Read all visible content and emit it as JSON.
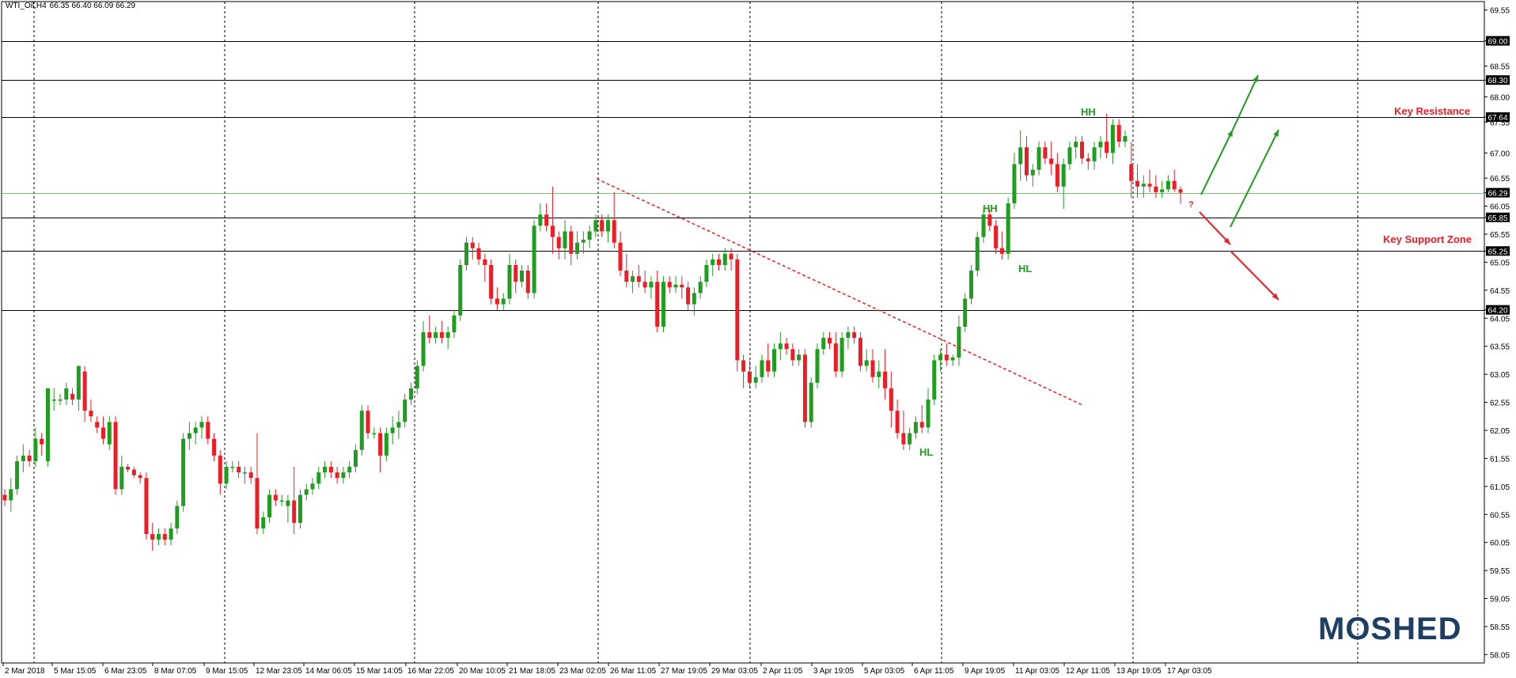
{
  "header": {
    "symbol": "WTI_Oil,H4",
    "ohlc": "66.35 66.40 66.09 66.29"
  },
  "logo": "MOSHED",
  "colors": {
    "up": "#1f9d1f",
    "down": "#ee1c24",
    "grid": "#000000",
    "resistance_text": "#ee1c24",
    "logo": "#1e3e63"
  },
  "chart_data": {
    "type": "candlestick",
    "title": "WTI_Oil,H4",
    "ylim": [
      57.9,
      69.7
    ],
    "y_ticks": [
      "69.55",
      "69.00",
      "68.55",
      "68.30",
      "68.00",
      "67.64",
      "67.55",
      "67.00",
      "66.55",
      "66.29",
      "66.05",
      "65.85",
      "65.55",
      "65.25",
      "65.05",
      "64.55",
      "64.20",
      "64.05",
      "63.55",
      "63.05",
      "62.55",
      "62.05",
      "61.55",
      "61.05",
      "60.55",
      "60.05",
      "59.55",
      "59.05",
      "58.55",
      "58.05"
    ],
    "x_ticks": [
      "2 Mar 2018",
      "5 Mar 15:05",
      "6 Mar 23:05",
      "8 Mar 07:05",
      "9 Mar 15:05",
      "12 Mar 23:05",
      "14 Mar 06:05",
      "15 Mar 14:05",
      "16 Mar 22:05",
      "20 Mar 10:05",
      "21 Mar 18:05",
      "23 Mar 02:05",
      "26 Mar 11:05",
      "27 Mar 19:05",
      "29 Mar 03:05",
      "2 Apr 11:05",
      "3 Apr 19:05",
      "5 Apr 03:05",
      "6 Apr 11:05",
      "9 Apr 19:05",
      "11 Apr 03:05",
      "12 Apr 11:05",
      "13 Apr 19:05",
      "17 Apr 03:05"
    ],
    "horizontal_levels": [
      69.0,
      68.3,
      67.64,
      65.85,
      65.25,
      64.2
    ],
    "current_price": 66.29,
    "annotations": {
      "key_resistance": "Key Resistance",
      "key_support": "Key Support Zone",
      "hh1": "HH",
      "hh2": "HH",
      "hl1": "HL",
      "hl2": "HL",
      "question": "?"
    },
    "candles": [
      [
        60.9,
        61.0,
        60.7,
        60.8
      ],
      [
        60.8,
        61.2,
        60.6,
        61.0
      ],
      [
        61.0,
        61.6,
        60.9,
        61.5
      ],
      [
        61.5,
        61.8,
        61.3,
        61.6
      ],
      [
        61.6,
        61.7,
        61.4,
        61.5
      ],
      [
        61.5,
        62.1,
        61.4,
        61.9
      ],
      [
        61.9,
        62.0,
        61.6,
        61.8
      ],
      [
        61.5,
        62.7,
        61.4,
        62.8
      ],
      [
        62.6,
        62.8,
        62.4,
        62.6
      ],
      [
        62.6,
        62.7,
        62.5,
        62.6
      ],
      [
        62.6,
        62.9,
        62.5,
        62.8
      ],
      [
        62.7,
        62.8,
        62.5,
        62.6
      ],
      [
        62.6,
        63.2,
        62.4,
        63.2
      ],
      [
        63.1,
        63.2,
        62.2,
        62.4
      ],
      [
        62.4,
        62.6,
        62.2,
        62.3
      ],
      [
        62.2,
        62.3,
        62.0,
        62.1
      ],
      [
        62.1,
        62.3,
        61.8,
        61.9
      ],
      [
        61.8,
        62.3,
        61.7,
        62.2
      ],
      [
        62.2,
        62.3,
        60.9,
        61.0
      ],
      [
        61.0,
        61.6,
        60.9,
        61.4
      ],
      [
        61.4,
        61.45,
        61.3,
        61.35
      ],
      [
        61.35,
        61.4,
        61.2,
        61.25
      ],
      [
        61.25,
        61.3,
        61.1,
        61.2
      ],
      [
        61.2,
        61.3,
        60.1,
        60.2
      ],
      [
        60.2,
        60.4,
        59.9,
        60.1
      ],
      [
        60.1,
        60.3,
        60.0,
        60.2
      ],
      [
        60.2,
        60.3,
        60.0,
        60.1
      ],
      [
        60.1,
        60.4,
        60.0,
        60.3
      ],
      [
        60.3,
        60.8,
        60.2,
        60.7
      ],
      [
        60.7,
        62.0,
        60.6,
        61.9
      ],
      [
        61.9,
        62.2,
        61.7,
        62.0
      ],
      [
        62.0,
        62.2,
        61.8,
        62.1
      ],
      [
        62.1,
        62.3,
        61.9,
        62.2
      ],
      [
        62.2,
        62.3,
        61.8,
        61.9
      ],
      [
        61.9,
        62.0,
        61.5,
        61.6
      ],
      [
        61.6,
        61.7,
        60.9,
        61.1
      ],
      [
        61.1,
        61.5,
        61.0,
        61.4
      ],
      [
        61.4,
        61.5,
        61.3,
        61.4
      ],
      [
        61.4,
        61.5,
        61.2,
        61.3
      ],
      [
        61.3,
        61.4,
        61.1,
        61.3
      ],
      [
        61.3,
        61.4,
        61.1,
        61.2
      ],
      [
        61.2,
        62.0,
        60.2,
        60.3
      ],
      [
        60.3,
        60.6,
        60.2,
        60.5
      ],
      [
        60.5,
        61.0,
        60.4,
        60.9
      ],
      [
        60.9,
        61.0,
        60.7,
        60.8
      ],
      [
        60.8,
        60.9,
        60.7,
        60.8
      ],
      [
        60.7,
        60.9,
        60.4,
        60.8
      ],
      [
        60.8,
        61.4,
        60.2,
        60.4
      ],
      [
        60.4,
        61.0,
        60.3,
        60.9
      ],
      [
        60.9,
        61.1,
        60.8,
        61.0
      ],
      [
        61.0,
        61.2,
        60.9,
        61.1
      ],
      [
        61.1,
        61.4,
        61.0,
        61.3
      ],
      [
        61.3,
        61.5,
        61.2,
        61.4
      ],
      [
        61.4,
        61.5,
        61.2,
        61.3
      ],
      [
        61.3,
        61.4,
        61.1,
        61.2
      ],
      [
        61.2,
        61.4,
        61.1,
        61.3
      ],
      [
        61.3,
        61.5,
        61.2,
        61.4
      ],
      [
        61.4,
        61.8,
        61.3,
        61.7
      ],
      [
        61.7,
        62.5,
        61.6,
        62.4
      ],
      [
        62.4,
        62.5,
        61.9,
        62.0
      ],
      [
        62.0,
        62.1,
        61.9,
        62.0
      ],
      [
        62.0,
        62.1,
        61.3,
        61.6
      ],
      [
        61.6,
        62.1,
        61.5,
        62.0
      ],
      [
        62.0,
        62.3,
        61.8,
        62.1
      ],
      [
        62.1,
        62.4,
        61.9,
        62.2
      ],
      [
        62.2,
        62.7,
        62.1,
        62.6
      ],
      [
        62.6,
        62.9,
        62.5,
        62.8
      ],
      [
        62.8,
        63.3,
        62.7,
        63.2
      ],
      [
        63.2,
        64.0,
        63.1,
        63.8
      ],
      [
        63.8,
        64.1,
        63.6,
        63.7
      ],
      [
        63.7,
        63.9,
        63.6,
        63.8
      ],
      [
        63.8,
        64.0,
        63.6,
        63.7
      ],
      [
        63.7,
        63.9,
        63.5,
        63.8
      ],
      [
        63.8,
        64.2,
        63.7,
        64.1
      ],
      [
        64.1,
        65.1,
        64.0,
        65.0
      ],
      [
        65.0,
        65.5,
        64.9,
        65.4
      ],
      [
        65.4,
        65.5,
        65.1,
        65.3
      ],
      [
        65.3,
        65.4,
        65.0,
        65.1
      ],
      [
        65.1,
        65.2,
        64.7,
        65.0
      ],
      [
        65.0,
        65.1,
        64.3,
        64.4
      ],
      [
        64.4,
        64.6,
        64.2,
        64.3
      ],
      [
        64.3,
        64.5,
        64.2,
        64.4
      ],
      [
        64.4,
        65.2,
        64.3,
        65.0
      ],
      [
        65.0,
        65.1,
        64.5,
        64.7
      ],
      [
        64.7,
        65.0,
        64.6,
        64.9
      ],
      [
        64.9,
        65.0,
        64.4,
        64.5
      ],
      [
        64.5,
        65.8,
        64.4,
        65.7
      ],
      [
        65.7,
        66.1,
        65.6,
        65.9
      ],
      [
        65.9,
        66.1,
        65.6,
        65.7
      ],
      [
        65.7,
        66.4,
        65.2,
        65.5
      ],
      [
        65.5,
        65.6,
        65.1,
        65.3
      ],
      [
        65.3,
        65.8,
        65.1,
        65.6
      ],
      [
        65.6,
        65.7,
        65.0,
        65.2
      ],
      [
        65.2,
        65.6,
        65.1,
        65.4
      ],
      [
        65.4,
        65.6,
        65.2,
        65.45
      ],
      [
        65.45,
        65.7,
        65.3,
        65.6
      ],
      [
        65.6,
        65.9,
        65.5,
        65.8
      ],
      [
        65.8,
        65.9,
        65.5,
        65.6
      ],
      [
        65.6,
        65.9,
        65.4,
        65.8
      ],
      [
        65.8,
        66.3,
        65.3,
        65.4
      ],
      [
        65.4,
        65.6,
        64.8,
        64.9
      ],
      [
        64.9,
        65.2,
        64.6,
        64.7
      ],
      [
        64.7,
        64.9,
        64.5,
        64.8
      ],
      [
        64.8,
        65.0,
        64.6,
        64.7
      ],
      [
        64.7,
        64.9,
        64.5,
        64.6
      ],
      [
        64.6,
        64.8,
        64.4,
        64.7
      ],
      [
        64.7,
        64.9,
        63.8,
        63.9
      ],
      [
        63.9,
        64.8,
        63.8,
        64.7
      ],
      [
        64.7,
        64.8,
        64.5,
        64.6
      ],
      [
        64.6,
        64.8,
        64.5,
        64.65
      ],
      [
        64.65,
        64.8,
        64.4,
        64.6
      ],
      [
        64.6,
        64.7,
        64.2,
        64.3
      ],
      [
        64.3,
        64.6,
        64.1,
        64.5
      ],
      [
        64.5,
        64.8,
        64.4,
        64.7
      ],
      [
        64.7,
        65.1,
        64.6,
        65.0
      ],
      [
        65.0,
        65.2,
        64.8,
        65.1
      ],
      [
        65.1,
        65.2,
        64.9,
        65.0
      ],
      [
        65.0,
        65.3,
        64.9,
        65.2
      ],
      [
        65.2,
        65.3,
        64.9,
        65.1
      ],
      [
        65.1,
        65.2,
        63.1,
        63.3
      ],
      [
        63.3,
        63.4,
        62.8,
        63.1
      ],
      [
        63.1,
        63.3,
        62.8,
        62.9
      ],
      [
        62.9,
        63.2,
        62.8,
        63.0
      ],
      [
        63.0,
        63.4,
        62.9,
        63.3
      ],
      [
        63.3,
        63.6,
        63.0,
        63.1
      ],
      [
        63.1,
        63.6,
        63.0,
        63.5
      ],
      [
        63.5,
        63.8,
        63.3,
        63.6
      ],
      [
        63.6,
        63.7,
        63.4,
        63.5
      ],
      [
        63.5,
        63.6,
        63.2,
        63.3
      ],
      [
        63.3,
        63.5,
        63.2,
        63.4
      ],
      [
        63.4,
        63.5,
        62.1,
        62.2
      ],
      [
        62.2,
        63.0,
        62.1,
        62.9
      ],
      [
        62.9,
        63.6,
        62.8,
        63.5
      ],
      [
        63.5,
        63.8,
        63.4,
        63.7
      ],
      [
        63.7,
        63.8,
        63.5,
        63.6
      ],
      [
        63.6,
        63.8,
        63.0,
        63.1
      ],
      [
        63.1,
        63.8,
        63.0,
        63.7
      ],
      [
        63.7,
        63.9,
        63.5,
        63.8
      ],
      [
        63.8,
        63.9,
        63.6,
        63.7
      ],
      [
        63.7,
        63.8,
        63.1,
        63.2
      ],
      [
        63.2,
        63.5,
        63.1,
        63.3
      ],
      [
        63.3,
        63.5,
        62.9,
        63.0
      ],
      [
        63.0,
        63.3,
        62.8,
        63.1
      ],
      [
        63.1,
        63.5,
        62.6,
        62.8
      ],
      [
        62.8,
        63.1,
        62.1,
        62.4
      ],
      [
        62.4,
        62.6,
        61.9,
        62.0
      ],
      [
        62.0,
        62.4,
        61.7,
        61.8
      ],
      [
        61.8,
        62.1,
        61.7,
        62.0
      ],
      [
        62.0,
        62.3,
        61.9,
        62.2
      ],
      [
        62.2,
        62.5,
        62.0,
        62.1
      ],
      [
        62.1,
        62.8,
        62.0,
        62.6
      ],
      [
        62.6,
        63.4,
        62.5,
        63.3
      ],
      [
        63.3,
        63.5,
        63.1,
        63.4
      ],
      [
        63.4,
        63.6,
        63.2,
        63.3
      ],
      [
        63.3,
        63.4,
        63.2,
        63.35
      ],
      [
        63.35,
        64.1,
        63.2,
        63.9
      ],
      [
        63.9,
        64.5,
        63.8,
        64.4
      ],
      [
        64.4,
        65.0,
        64.3,
        64.9
      ],
      [
        64.9,
        65.6,
        64.8,
        65.5
      ],
      [
        65.5,
        66.0,
        65.4,
        65.9
      ],
      [
        65.9,
        66.0,
        65.6,
        65.7
      ],
      [
        65.7,
        65.8,
        65.2,
        65.3
      ],
      [
        65.3,
        65.6,
        65.1,
        65.2
      ],
      [
        65.2,
        66.2,
        65.1,
        66.1
      ],
      [
        66.1,
        67.0,
        66.0,
        66.8
      ],
      [
        66.8,
        67.4,
        66.5,
        67.1
      ],
      [
        67.1,
        67.3,
        66.5,
        66.6
      ],
      [
        66.6,
        66.8,
        66.4,
        66.7
      ],
      [
        66.7,
        67.2,
        66.6,
        67.1
      ],
      [
        67.1,
        67.2,
        66.8,
        66.9
      ],
      [
        66.9,
        67.2,
        66.6,
        66.8
      ],
      [
        66.8,
        67.0,
        66.3,
        66.4
      ],
      [
        66.4,
        66.9,
        66.0,
        66.8
      ],
      [
        66.8,
        67.2,
        66.7,
        67.1
      ],
      [
        67.1,
        67.3,
        66.9,
        67.2
      ],
      [
        67.2,
        67.3,
        66.8,
        66.9
      ],
      [
        66.9,
        67.0,
        66.7,
        66.85
      ],
      [
        66.85,
        67.2,
        66.7,
        67.1
      ],
      [
        67.1,
        67.3,
        66.9,
        67.2
      ],
      [
        67.2,
        67.7,
        66.9,
        67.0
      ],
      [
        67.0,
        67.6,
        66.8,
        67.5
      ],
      [
        67.5,
        67.6,
        67.1,
        67.2
      ],
      [
        67.2,
        67.4,
        67.1,
        67.3
      ],
      [
        66.8,
        67.2,
        66.2,
        66.5
      ],
      [
        66.5,
        66.8,
        66.2,
        66.4
      ],
      [
        66.4,
        66.6,
        66.2,
        66.45
      ],
      [
        66.45,
        66.7,
        66.3,
        66.4
      ],
      [
        66.4,
        66.6,
        66.2,
        66.3
      ],
      [
        66.3,
        66.5,
        66.2,
        66.35
      ],
      [
        66.35,
        66.6,
        66.3,
        66.5
      ],
      [
        66.5,
        66.7,
        66.3,
        66.35
      ],
      [
        66.35,
        66.4,
        66.09,
        66.29
      ]
    ]
  }
}
